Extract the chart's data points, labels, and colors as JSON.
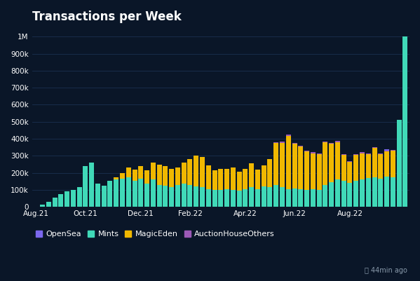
{
  "title": "Transactions per Week",
  "background_color": "#0a1628",
  "plot_bg_color": "#0a1628",
  "grid_color": "#1a3050",
  "text_color": "#ffffff",
  "ylabel_ticks": [
    "0",
    "100k",
    "200k",
    "300k",
    "400k",
    "500k",
    "600k",
    "700k",
    "800k",
    "900k",
    "1M"
  ],
  "ytick_values": [
    0,
    100000,
    200000,
    300000,
    400000,
    500000,
    600000,
    700000,
    800000,
    900000,
    1000000
  ],
  "ylim": [
    0,
    1050000
  ],
  "xtick_labels": [
    "Aug.21",
    "Oct.21",
    "Dec.21",
    "Feb.22",
    "Apr.22",
    "Jun.22",
    "Aug.22"
  ],
  "colors": {
    "OpenSea": "#7b68ee",
    "Mints": "#40d9b8",
    "MagicEden": "#f0b800",
    "AuctionHouseOthers": "#9b59b6"
  },
  "legend_fontsize": 8,
  "title_fontsize": 12,
  "footer_text": "⌛ 44min ago",
  "mints": [
    3000,
    15000,
    30000,
    55000,
    75000,
    90000,
    100000,
    115000,
    240000,
    260000,
    135000,
    125000,
    155000,
    160000,
    165000,
    175000,
    155000,
    165000,
    135000,
    160000,
    130000,
    125000,
    115000,
    130000,
    135000,
    130000,
    120000,
    115000,
    105000,
    100000,
    98000,
    105000,
    100000,
    95000,
    105000,
    115000,
    105000,
    120000,
    115000,
    130000,
    115000,
    105000,
    110000,
    105000,
    100000,
    105000,
    100000,
    130000,
    145000,
    160000,
    155000,
    140000,
    155000,
    160000,
    170000,
    175000,
    165000,
    180000,
    175000,
    510000,
    1000000
  ],
  "magiceden": [
    0,
    0,
    0,
    0,
    0,
    0,
    0,
    0,
    0,
    0,
    0,
    0,
    0,
    15000,
    35000,
    55000,
    65000,
    75000,
    80000,
    100000,
    120000,
    115000,
    110000,
    100000,
    125000,
    150000,
    180000,
    180000,
    140000,
    115000,
    125000,
    120000,
    130000,
    110000,
    120000,
    140000,
    115000,
    125000,
    165000,
    245000,
    260000,
    310000,
    260000,
    250000,
    225000,
    210000,
    210000,
    250000,
    225000,
    220000,
    150000,
    125000,
    150000,
    155000,
    140000,
    170000,
    145000,
    145000,
    155000,
    0,
    0
  ],
  "opensea": [
    0,
    0,
    0,
    0,
    0,
    0,
    0,
    0,
    0,
    0,
    0,
    0,
    0,
    0,
    0,
    0,
    0,
    0,
    0,
    0,
    0,
    0,
    0,
    0,
    0,
    0,
    0,
    0,
    0,
    0,
    0,
    0,
    0,
    0,
    0,
    0,
    0,
    0,
    0,
    0,
    0,
    0,
    0,
    0,
    0,
    0,
    0,
    0,
    0,
    0,
    0,
    0,
    0,
    0,
    0,
    0,
    0,
    8000,
    0,
    0,
    0
  ],
  "auctionhouse": [
    0,
    0,
    0,
    0,
    0,
    0,
    0,
    0,
    0,
    0,
    0,
    0,
    0,
    0,
    0,
    0,
    0,
    0,
    0,
    0,
    0,
    0,
    0,
    0,
    0,
    0,
    0,
    0,
    0,
    0,
    0,
    0,
    0,
    0,
    0,
    0,
    0,
    0,
    0,
    5000,
    8000,
    8000,
    5000,
    5000,
    5000,
    5000,
    5000,
    5000,
    5000,
    8000,
    5000,
    5000,
    5000,
    5000,
    5000,
    5000,
    5000,
    5000,
    5000,
    0,
    0
  ]
}
